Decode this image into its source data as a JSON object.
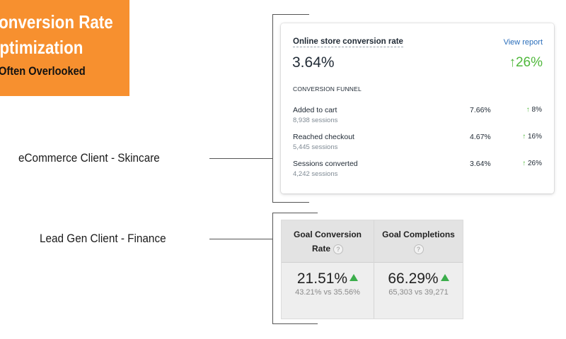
{
  "banner": {
    "line1": "Conversion Rate",
    "line2": "Optimization",
    "line3": "Often Overlooked",
    "color": "#f7902f"
  },
  "labels": {
    "ecommerce": "eCommerce Client - Skincare",
    "leadgen": "Lead Gen Client - Finance"
  },
  "store_card": {
    "title": "Online store conversion rate",
    "view_report": "View report",
    "rate": "3.64%",
    "change": "↑26%",
    "funnel_title": "CONVERSION FUNNEL",
    "steps": [
      {
        "label": "Added to cart",
        "sessions": "8,938 sessions",
        "rate": "7.66%",
        "arrow": "↑",
        "change": "8%"
      },
      {
        "label": "Reached checkout",
        "sessions": "5,445 sessions",
        "rate": "4.67%",
        "arrow": "↑",
        "change": "16%"
      },
      {
        "label": "Sessions converted",
        "sessions": "4,242 sessions",
        "rate": "3.64%",
        "arrow": "↑",
        "change": "26%"
      }
    ],
    "positive_color": "#50b83c"
  },
  "ga_table": {
    "columns": [
      {
        "header_line1": "Goal Conversion",
        "header_line2": "Rate",
        "help": "?",
        "value": "21.51%",
        "compare": "43.21% vs 35.56%"
      },
      {
        "header_line1": "Goal Completions",
        "header_line2": "",
        "help": "?",
        "value": "66.29%",
        "compare": "65,303 vs 39,271"
      }
    ],
    "up_icon": "up-triangle-icon",
    "up_color": "#3bad4b"
  }
}
